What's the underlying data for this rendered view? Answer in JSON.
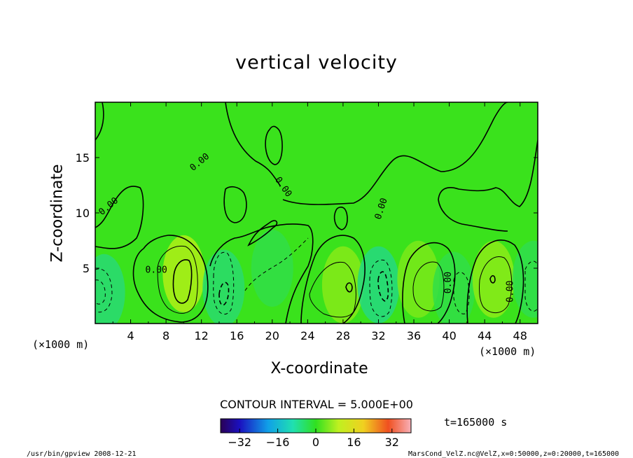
{
  "chart_data": {
    "type": "heatmap",
    "title": "vertical velocity",
    "xlabel": "X-coordinate",
    "ylabel": "Z-coordinate",
    "x_unit_label": "(×1000 m)",
    "x_unit_label_right": "(×1000 m)",
    "xlim": [
      0,
      50
    ],
    "ylim": [
      0,
      20
    ],
    "x_ticks": [
      "4",
      "8",
      "12",
      "16",
      "20",
      "24",
      "28",
      "32",
      "36",
      "40",
      "44",
      "48"
    ],
    "y_ticks": [
      "5",
      "10",
      "15"
    ],
    "contour_interval_text": "CONTOUR INTERVAL = 5.000E+00",
    "contour_labels": [
      "0.00",
      "0.00",
      "0.00",
      "0.00",
      "0.00",
      "0.00",
      "0.00"
    ],
    "colorbar": {
      "range": [
        -40,
        40
      ],
      "ticks": [
        "−32",
        "−16",
        "0",
        "16",
        "32"
      ]
    },
    "time_label": "t=165000 s",
    "cells": [
      {
        "x": 1,
        "z": 2.8,
        "w": -14
      },
      {
        "x": 10,
        "z": 4.5,
        "w": 20
      },
      {
        "x": 14.5,
        "z": 3.2,
        "w": -13
      },
      {
        "x": 20,
        "z": 5,
        "w": -7
      },
      {
        "x": 28,
        "z": 3.5,
        "w": 13
      },
      {
        "x": 32,
        "z": 3.5,
        "w": -16
      },
      {
        "x": 36.5,
        "z": 4,
        "w": 11
      },
      {
        "x": 40.5,
        "z": 3,
        "w": -7
      },
      {
        "x": 45,
        "z": 4,
        "w": 14
      },
      {
        "x": 49.5,
        "z": 4,
        "w": -8
      }
    ]
  },
  "footer": {
    "left": "/usr/bin/gpview  2008-12-21",
    "right": "MarsCond_VelZ.nc@VelZ,x=0:50000,z=0:20000,t=165000"
  }
}
